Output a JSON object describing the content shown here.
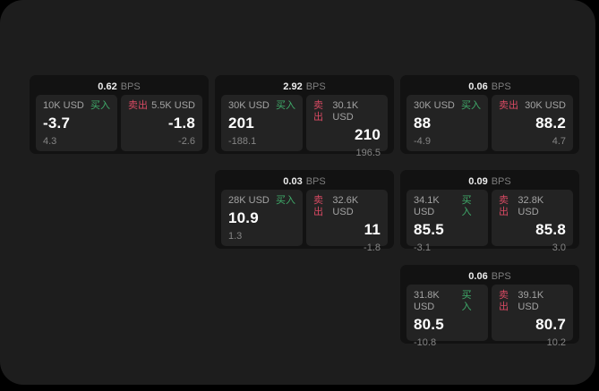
{
  "labels": {
    "bps": "BPS",
    "buy": "买入",
    "sell": "卖出"
  },
  "colors": {
    "background": "#000000",
    "surface": "#1d1d1d",
    "card": "#121212",
    "panel": "#232323",
    "buy_accent": "#3fab6a",
    "sell_accent": "#d84a63",
    "value_text": "#ffffff",
    "muted_text": "#858585"
  },
  "cards": [
    {
      "bps": "0.62",
      "buy": {
        "amount": "10K USD",
        "value": "-3.7",
        "sub": "4.3"
      },
      "sell": {
        "amount": "5.5K USD",
        "value": "-1.8",
        "sub": "-2.6"
      }
    },
    {
      "bps": "2.92",
      "buy": {
        "amount": "30K USD",
        "value": "201",
        "sub": "-188.1"
      },
      "sell": {
        "amount": "30.1K USD",
        "value": "210",
        "sub": "196.5"
      }
    },
    {
      "bps": "0.06",
      "buy": {
        "amount": "30K USD",
        "value": "88",
        "sub": "-4.9"
      },
      "sell": {
        "amount": "30K USD",
        "value": "88.2",
        "sub": "4.7"
      }
    },
    {
      "bps": "0.03",
      "buy": {
        "amount": "28K USD",
        "value": "10.9",
        "sub": "1.3"
      },
      "sell": {
        "amount": "32.6K USD",
        "value": "11",
        "sub": "-1.8"
      }
    },
    {
      "bps": "0.09",
      "buy": {
        "amount": "34.1K USD",
        "value": "85.5",
        "sub": "-3.1"
      },
      "sell": {
        "amount": "32.8K USD",
        "value": "85.8",
        "sub": "3.0"
      }
    },
    {
      "bps": "0.06",
      "buy": {
        "amount": "31.8K USD",
        "value": "80.5",
        "sub": "-10.8"
      },
      "sell": {
        "amount": "39.1K USD",
        "value": "80.7",
        "sub": "10.2"
      }
    }
  ]
}
